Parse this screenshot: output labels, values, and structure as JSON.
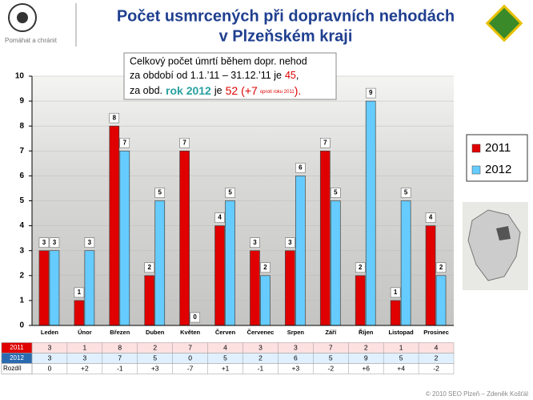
{
  "header": {
    "logo_text": "Pomáhat a chránit",
    "title_line1": "Počet usmrcených při dopravních nehodách",
    "title_line2": "v Plzeňském kraji"
  },
  "annotation": {
    "line1": "Celkový počet úmrtí během dopr. nehod",
    "line2": "za období od 1.1.’11 – 31.12.’11 je",
    "total_2011": 45,
    "line2_end": ",",
    "line3_prefix": "za obd.",
    "line3_year": "rok 2012",
    "line3_mid": "je",
    "total_2012": 52,
    "change": "(+7",
    "change_note": "oproti roku 2011",
    "line3_end": ")."
  },
  "chart_data": {
    "type": "bar",
    "categories": [
      "Leden",
      "Únor",
      "Březen",
      "Duben",
      "Květen",
      "Červen",
      "Červenec",
      "Srpen",
      "Září",
      "Říjen",
      "Listopad",
      "Prosinec"
    ],
    "series": [
      {
        "name": "2011",
        "color": "#e00000",
        "values": [
          3,
          1,
          8,
          2,
          7,
          4,
          3,
          3,
          7,
          2,
          1,
          4
        ]
      },
      {
        "name": "2012",
        "color": "#66ccff",
        "values": [
          3,
          3,
          7,
          5,
          0,
          5,
          2,
          6,
          5,
          9,
          5,
          2
        ]
      }
    ],
    "ylim": [
      0,
      10
    ],
    "yticks": [
      0,
      1,
      2,
      3,
      4,
      5,
      6,
      7,
      8,
      9,
      10
    ],
    "grid": true,
    "table": {
      "diff_label": "Rozdíl",
      "differences": [
        "0",
        "+2",
        "-1",
        "+3",
        "-7",
        "+1",
        "-1",
        "+3",
        "-2",
        "+6",
        "+4",
        "-2"
      ]
    }
  },
  "footer": "© 2010 SEO Plzeň – Zdeněk Košťál"
}
